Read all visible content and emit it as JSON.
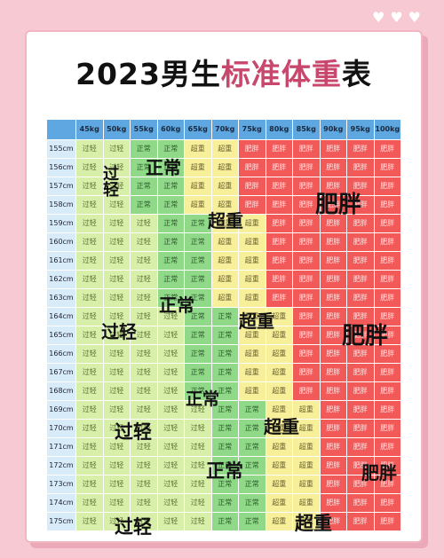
{
  "title": {
    "year": "2023",
    "gender": "男生",
    "pink": "标准体重",
    "tail": "表"
  },
  "weights": [
    "45kg",
    "50kg",
    "55kg",
    "60kg",
    "65kg",
    "70kg",
    "75kg",
    "80kg",
    "85kg",
    "90kg",
    "95kg",
    "100kg"
  ],
  "heights": [
    "155cm",
    "156cm",
    "157cm",
    "158cm",
    "159cm",
    "160cm",
    "161cm",
    "162cm",
    "163cm",
    "164cm",
    "165cm",
    "166cm",
    "167cm",
    "168cm",
    "169cm",
    "170cm",
    "171cm",
    "172cm",
    "173cm",
    "174cm",
    "175cm"
  ],
  "labels": {
    "under": "过轻",
    "normal": "正常",
    "over": "超重",
    "obese": "肥胖"
  },
  "colors": {
    "under": "#d7efa8",
    "normal": "#8fd988",
    "over": "#f7ef9a",
    "obese": "#f25a5a",
    "header": "#5ea7e0",
    "height_col": "#d8ebf8"
  },
  "thresholds": [
    [
      1,
      3,
      5,
      7
    ],
    [
      1,
      3,
      5,
      7
    ],
    [
      1,
      3,
      5,
      7
    ],
    [
      1,
      3,
      5,
      7
    ],
    [
      2,
      4,
      6,
      8
    ],
    [
      2,
      4,
      6,
      8
    ],
    [
      2,
      4,
      6,
      8
    ],
    [
      2,
      4,
      6,
      8
    ],
    [
      2,
      4,
      6,
      8
    ],
    [
      3,
      5,
      7,
      9
    ],
    [
      3,
      5,
      7,
      9
    ],
    [
      3,
      5,
      7,
      9
    ],
    [
      3,
      5,
      7,
      9
    ],
    [
      3,
      5,
      7,
      9
    ],
    [
      4,
      6,
      8,
      11
    ],
    [
      4,
      6,
      8,
      11
    ],
    [
      4,
      6,
      8,
      11
    ],
    [
      4,
      6,
      8,
      11
    ],
    [
      4,
      6,
      8,
      11
    ],
    [
      4,
      6,
      8,
      11
    ],
    [
      4,
      6,
      8,
      11
    ]
  ],
  "overlays": [
    {
      "text": "过轻",
      "zone": "under",
      "vertical": true
    },
    {
      "text": "正常",
      "zone": "normal"
    },
    {
      "text": "超重",
      "zone": "over"
    },
    {
      "text": "肥胖",
      "zone": "obese"
    },
    {
      "text": "过轻",
      "zone": "under"
    },
    {
      "text": "正常",
      "zone": "normal"
    },
    {
      "text": "超重",
      "zone": "over"
    },
    {
      "text": "肥胖",
      "zone": "obese"
    },
    {
      "text": "正常",
      "zone": "normal"
    },
    {
      "text": "超重",
      "zone": "over"
    },
    {
      "text": "过轻",
      "zone": "under"
    },
    {
      "text": "正常",
      "zone": "normal"
    },
    {
      "text": "肥胖",
      "zone": "obese"
    },
    {
      "text": "过轻",
      "zone": "under"
    },
    {
      "text": "超重",
      "zone": "over"
    }
  ]
}
